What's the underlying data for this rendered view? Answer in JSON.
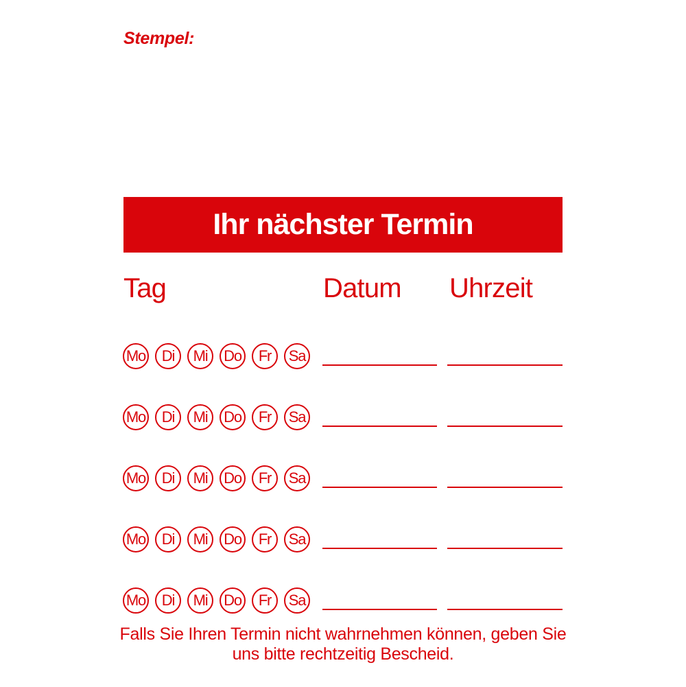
{
  "colors": {
    "red": "#d9050b",
    "white": "#ffffff"
  },
  "stamp": {
    "label": "Stempel:"
  },
  "banner": {
    "title": "Ihr nächster Termin"
  },
  "table": {
    "headers": {
      "day": "Tag",
      "date": "Datum",
      "time": "Uhrzeit"
    },
    "days": [
      "Mo",
      "Di",
      "Mi",
      "Do",
      "Fr",
      "Sa"
    ],
    "row_count": 5,
    "date_value": "",
    "time_value": ""
  },
  "footer": {
    "line1": "Falls Sie Ihren Termin nicht wahrnehmen können, geben Sie",
    "line2": "uns bitte rechtzeitig Bescheid."
  }
}
